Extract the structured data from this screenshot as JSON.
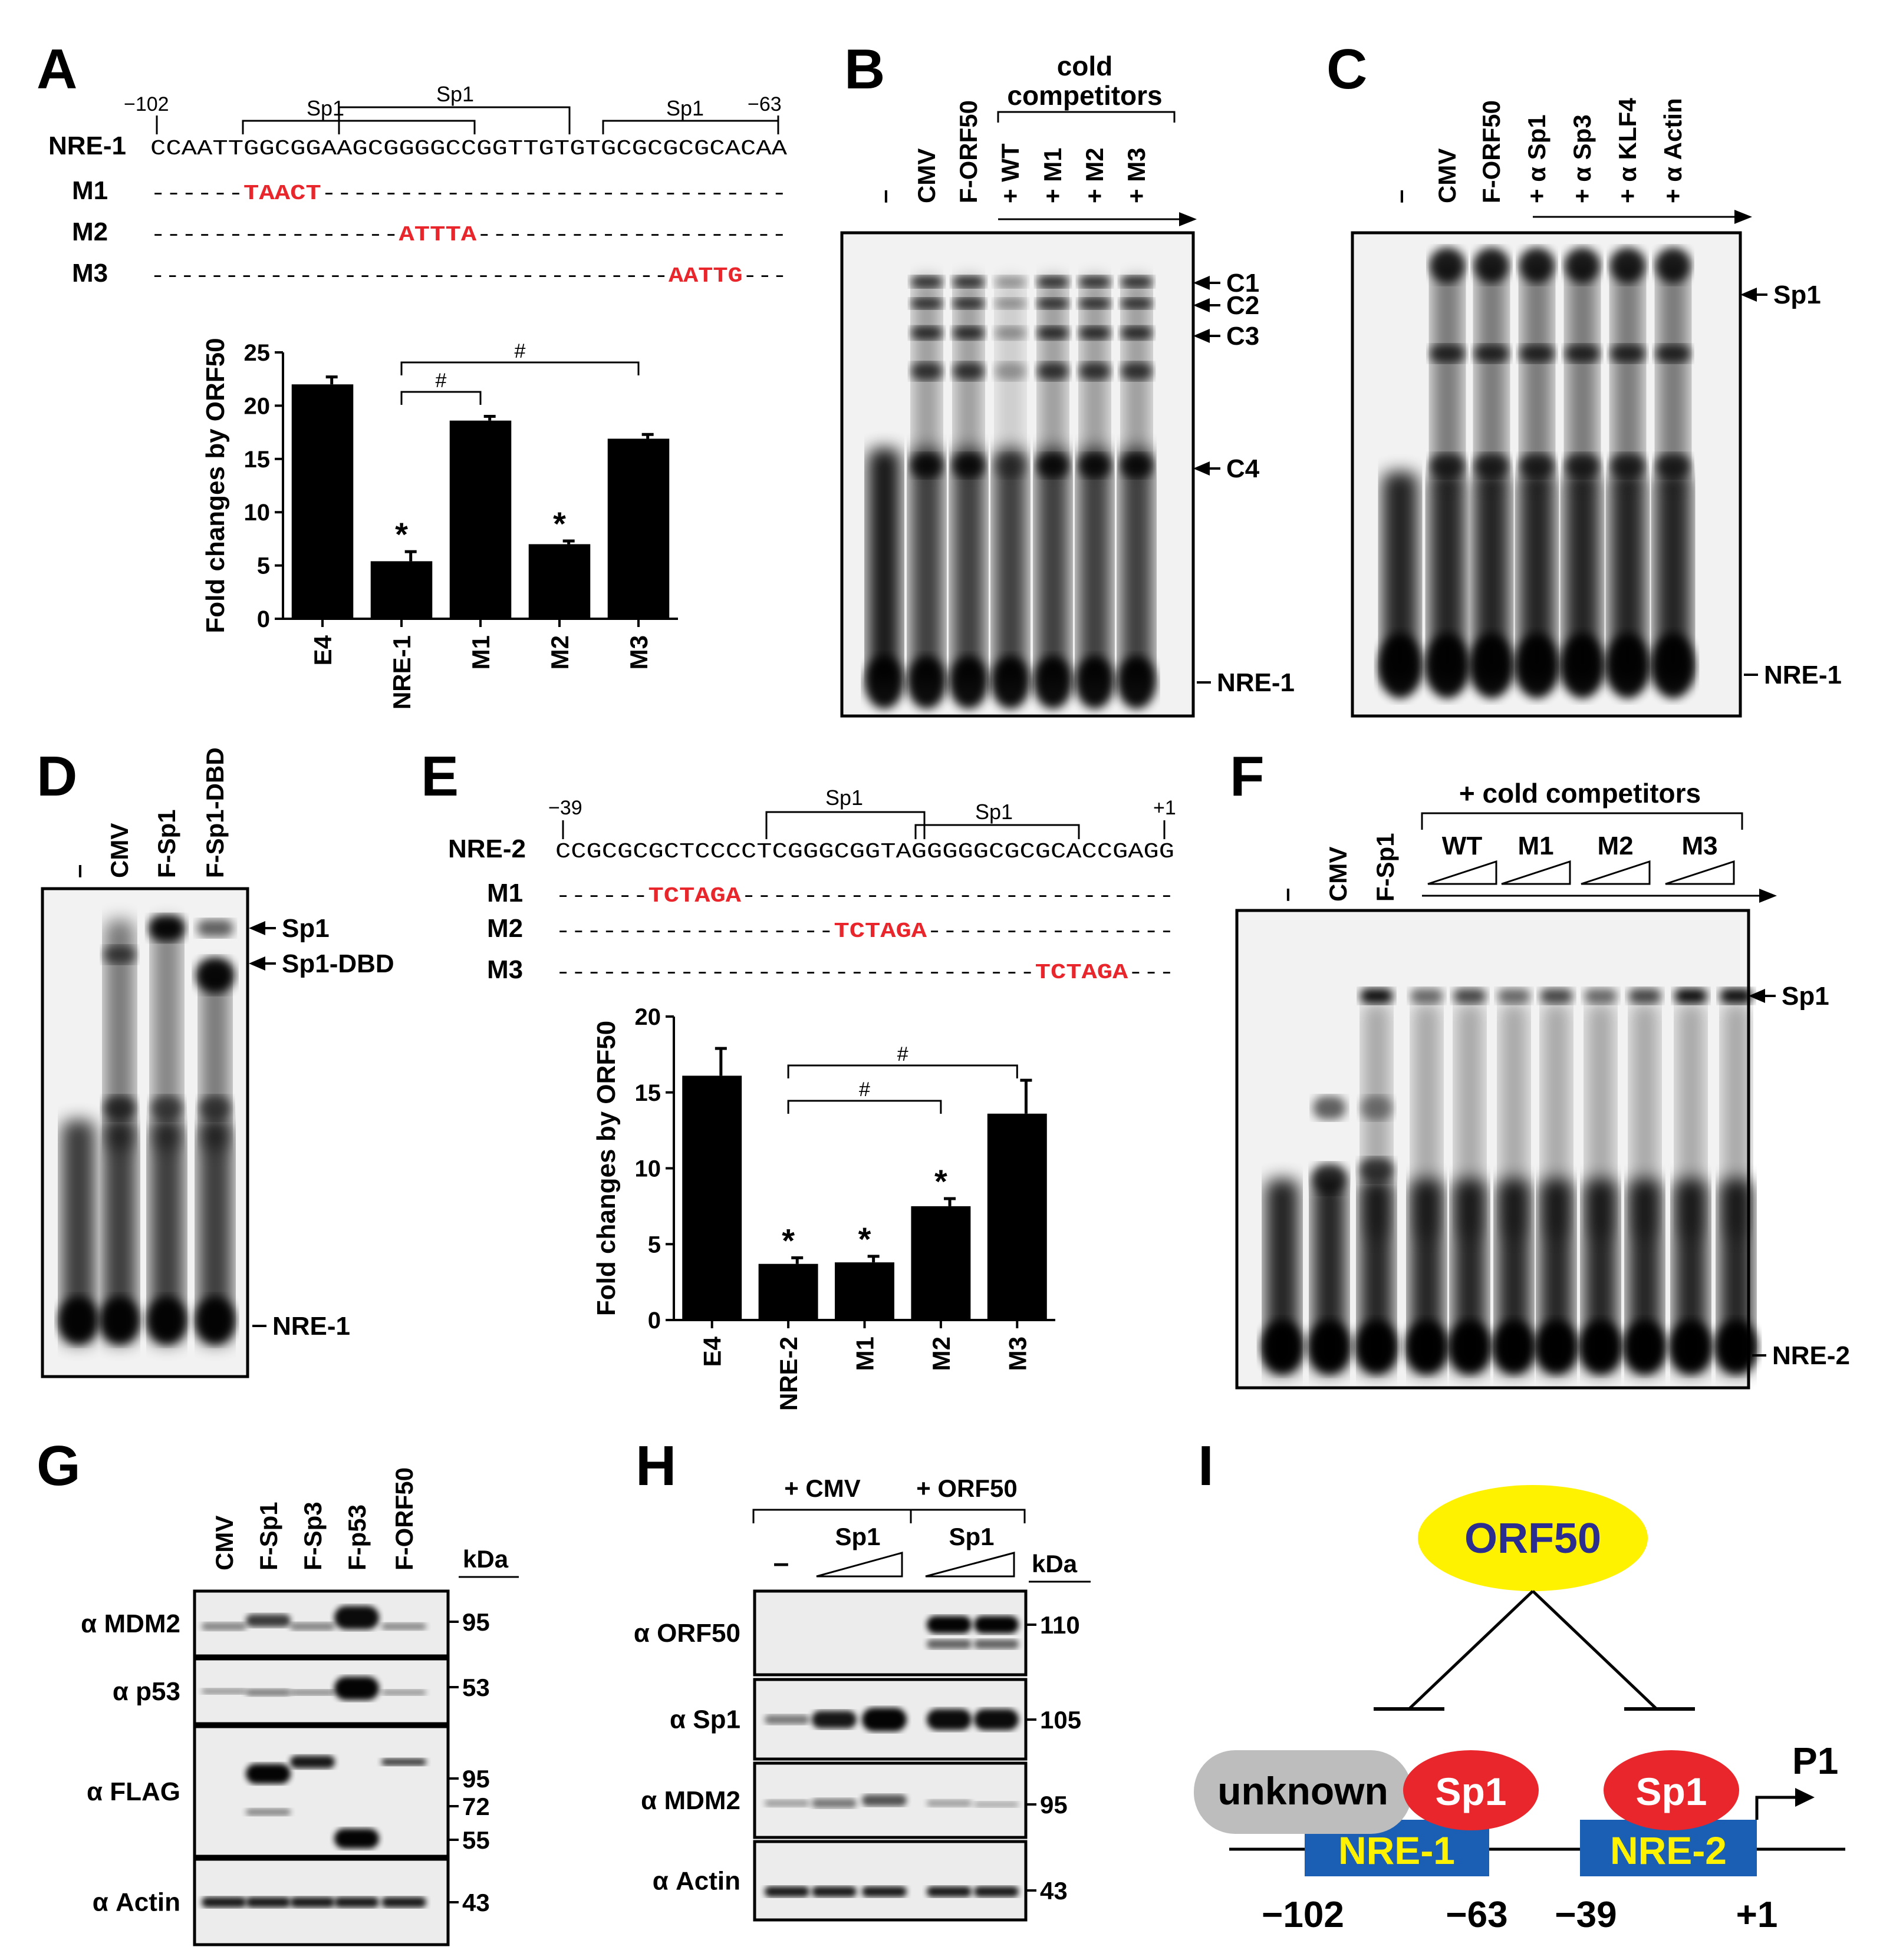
{
  "panels": {
    "A": {
      "letter": "A",
      "positions": [
        "−102",
        "−63"
      ],
      "site_labels": [
        "Sp1",
        "Sp1",
        "Sp1"
      ],
      "seq_rows": [
        {
          "name": "NRE-1",
          "prefix": "",
          "mut": "",
          "suffix": "CCAATTGGCGGAAGCGGGGCCGGTTGTGTGCGCGCGCACAA"
        },
        {
          "name": "M1",
          "prefix": "------",
          "mut": "TAACT",
          "suffix": "------------------------------"
        },
        {
          "name": "M2",
          "prefix": "----------------",
          "mut": "ATTTA",
          "suffix": "--------------------"
        },
        {
          "name": "M3",
          "prefix": "-----------------------------------",
          "mut": "AATTG",
          "suffix": "---"
        }
      ]
    },
    "B": {
      "letter": "B",
      "header": [
        "cold",
        "competitors"
      ],
      "lanes": [
        "–",
        "CMV",
        "F-ORF50",
        "+ WT",
        "+ M1",
        "+ M2",
        "+ M3"
      ],
      "bands": [
        "C1",
        "C2",
        "C3",
        "C4",
        "NRE-1"
      ]
    },
    "C": {
      "letter": "C",
      "lanes": [
        "–",
        "CMV",
        "F-ORF50",
        "+ α Sp1",
        "+ α Sp3",
        "+ α KLF4",
        "+ α Actin"
      ],
      "bands": [
        "Sp1",
        "NRE-1"
      ]
    },
    "D": {
      "letter": "D",
      "lanes": [
        "–",
        "CMV",
        "F-Sp1",
        "F-Sp1-DBD"
      ],
      "bands": [
        "Sp1",
        "Sp1-DBD",
        "NRE-1"
      ]
    },
    "E": {
      "letter": "E",
      "positions": [
        "−39",
        "+1"
      ],
      "site_labels": [
        "Sp1",
        "Sp1"
      ],
      "seq_rows": [
        {
          "name": "NRE-2",
          "prefix": "",
          "mut": "",
          "suffix": "CCGCGCGCTCCCCTCGGGCGGTAGGGGGCGCGCACCGAGG"
        },
        {
          "name": "M1",
          "prefix": "------",
          "mut": "TCTAGA",
          "suffix": "----------------------------"
        },
        {
          "name": "M2",
          "prefix": "------------------",
          "mut": "TCTAGA",
          "suffix": "----------------"
        },
        {
          "name": "M3",
          "prefix": "-------------------------------",
          "mut": "TCTAGA",
          "suffix": "---"
        }
      ]
    },
    "F": {
      "letter": "F",
      "header": "+ cold competitors",
      "lanes": [
        "–",
        "CMV",
        "F-Sp1"
      ],
      "groups": [
        "WT",
        "M1",
        "M2",
        "M3"
      ],
      "bands": [
        "Sp1",
        "NRE-2"
      ]
    },
    "G": {
      "letter": "G",
      "lanes": [
        "CMV",
        "F-Sp1",
        "F-Sp3",
        "F-p53",
        "F-ORF50"
      ],
      "kda_label": "kDa",
      "blots": [
        {
          "label": "α MDM2",
          "markers": [
            "95"
          ]
        },
        {
          "label": "α p53",
          "markers": [
            "53"
          ]
        },
        {
          "label": "α FLAG",
          "markers": [
            "95",
            "72",
            "55"
          ]
        },
        {
          "label": "α Actin",
          "markers": [
            "43"
          ]
        }
      ]
    },
    "H": {
      "letter": "H",
      "groups": [
        "+ CMV",
        "+ ORF50"
      ],
      "sp1": "Sp1",
      "dash": "–",
      "kda_label": "kDa",
      "blots": [
        {
          "label": "α ORF50",
          "markers": [
            "110"
          ]
        },
        {
          "label": "α Sp1",
          "markers": [
            "105"
          ]
        },
        {
          "label": "α MDM2",
          "markers": [
            "95"
          ]
        },
        {
          "label": "α Actin",
          "markers": [
            "43"
          ]
        }
      ]
    },
    "I": {
      "letter": "I",
      "orf50": "ORF50",
      "unknown": "unknown",
      "sp1": "Sp1",
      "nre1": "NRE-1",
      "nre2": "NRE-2",
      "promoter": "P1",
      "positions": [
        "−102",
        "−63",
        "−39",
        "+1"
      ],
      "colors": {
        "orf50": "#fff200",
        "sp1": "#e8262b",
        "nre": "#1a5fb4",
        "nre_text": "#fff200",
        "unknown": "#bdbdbd",
        "orf50_text": "#2b2d8f"
      }
    }
  },
  "chart_data": [
    {
      "type": "bar",
      "panel": "A",
      "categories": [
        "E4",
        "NRE-1",
        "M1",
        "M2",
        "M3"
      ],
      "values": [
        22.0,
        5.4,
        18.6,
        7.0,
        16.9
      ],
      "errors": [
        0.7,
        0.9,
        0.4,
        0.3,
        0.4
      ],
      "star": [
        false,
        true,
        false,
        true,
        false
      ],
      "ylabel": "Fold changes by ORF50",
      "ylim": [
        0,
        25
      ],
      "yticks": [
        0,
        5,
        10,
        15,
        20,
        25
      ],
      "brackets": [
        {
          "from": 1,
          "to": 2,
          "label": "#"
        },
        {
          "from": 1,
          "to": 4,
          "label": "#"
        }
      ]
    },
    {
      "type": "bar",
      "panel": "E",
      "categories": [
        "E4",
        "NRE-2",
        "M1",
        "M2",
        "M3"
      ],
      "values": [
        16.1,
        3.7,
        3.8,
        7.5,
        13.6
      ],
      "errors": [
        1.8,
        0.4,
        0.4,
        0.5,
        2.2
      ],
      "star": [
        false,
        true,
        true,
        true,
        false
      ],
      "ylabel": "Fold changes by ORF50",
      "ylim": [
        0,
        20
      ],
      "yticks": [
        0,
        5,
        10,
        15,
        20
      ],
      "brackets": [
        {
          "from": 1,
          "to": 3,
          "label": "#"
        },
        {
          "from": 1,
          "to": 4,
          "label": "#"
        }
      ]
    }
  ]
}
